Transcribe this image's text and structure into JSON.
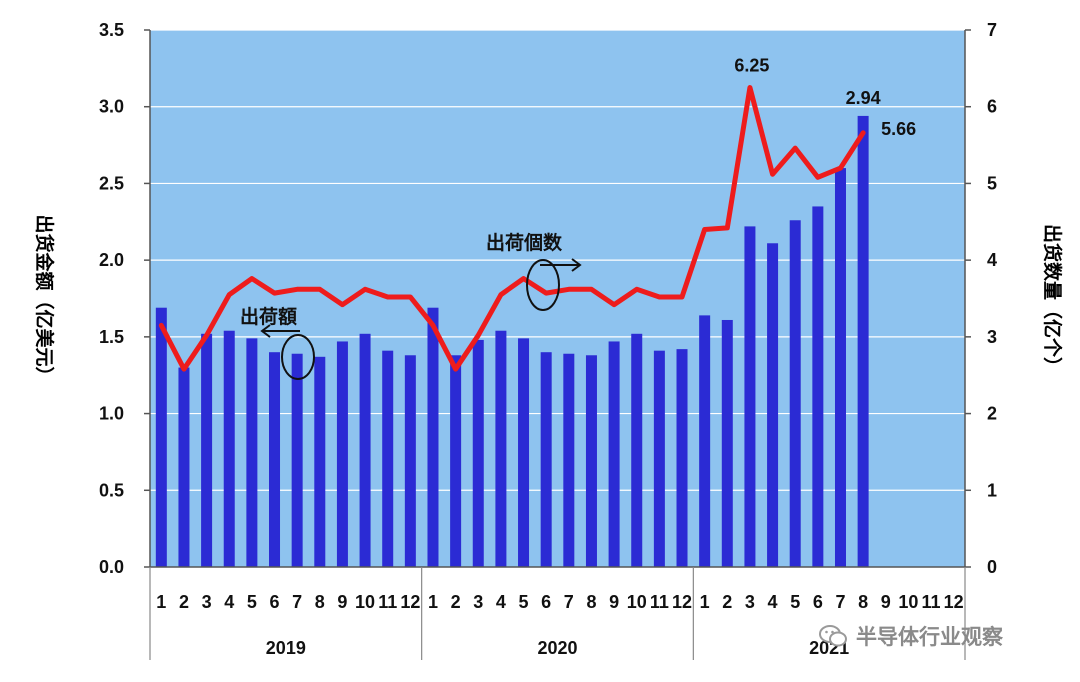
{
  "chart_data": {
    "type": "bar+line",
    "left_axis": {
      "label": "出货金额（亿美元）",
      "ticks": [
        "0.0",
        "0.5",
        "1.0",
        "1.5",
        "2.0",
        "2.5",
        "3.0",
        "3.5"
      ],
      "range": [
        0,
        3.5
      ]
    },
    "right_axis": {
      "label": "出货数量（亿个）",
      "ticks": [
        "0",
        "1",
        "2",
        "3",
        "4",
        "5",
        "6",
        "7"
      ],
      "range": [
        0,
        7
      ]
    },
    "months": [
      "1",
      "2",
      "3",
      "4",
      "5",
      "6",
      "7",
      "8",
      "9",
      "10",
      "11",
      "12",
      "1",
      "2",
      "3",
      "4",
      "5",
      "6",
      "7",
      "8",
      "9",
      "10",
      "11",
      "12",
      "1",
      "2",
      "3",
      "4",
      "5",
      "6",
      "7",
      "8",
      "9",
      "10",
      "11",
      "12"
    ],
    "years": [
      "2019",
      "2020",
      "2021"
    ],
    "series": [
      {
        "name": "出荷額",
        "kind": "bar",
        "axis": "left",
        "color": "#2b2bd4",
        "values": [
          1.69,
          1.3,
          1.52,
          1.54,
          1.49,
          1.4,
          1.39,
          1.37,
          1.47,
          1.52,
          1.41,
          1.38,
          1.69,
          1.38,
          1.48,
          1.54,
          1.49,
          1.4,
          1.39,
          1.38,
          1.47,
          1.52,
          1.41,
          1.42,
          1.64,
          1.61,
          2.22,
          2.11,
          2.26,
          2.35,
          2.6,
          2.94,
          null,
          null,
          null,
          null
        ]
      },
      {
        "name": "出荷個数",
        "kind": "line",
        "axis": "right",
        "color": "#ee1c1c",
        "values": [
          3.15,
          2.58,
          3.02,
          3.55,
          3.76,
          3.57,
          3.62,
          3.62,
          3.42,
          3.62,
          3.52,
          3.52,
          3.15,
          2.58,
          3.02,
          3.55,
          3.76,
          3.57,
          3.62,
          3.62,
          3.42,
          3.62,
          3.52,
          3.52,
          4.4,
          4.42,
          6.25,
          5.12,
          5.46,
          5.08,
          5.2,
          5.66,
          null,
          null,
          null,
          null
        ]
      }
    ],
    "data_labels": [
      "6.25",
      "2.94",
      "5.66"
    ],
    "grid": true,
    "plot_background": "#8ec3ef"
  },
  "annotations": {
    "amount_label": "出荷額",
    "count_label": "出荷個数"
  },
  "watermark": {
    "text": "半导体行业观察"
  }
}
